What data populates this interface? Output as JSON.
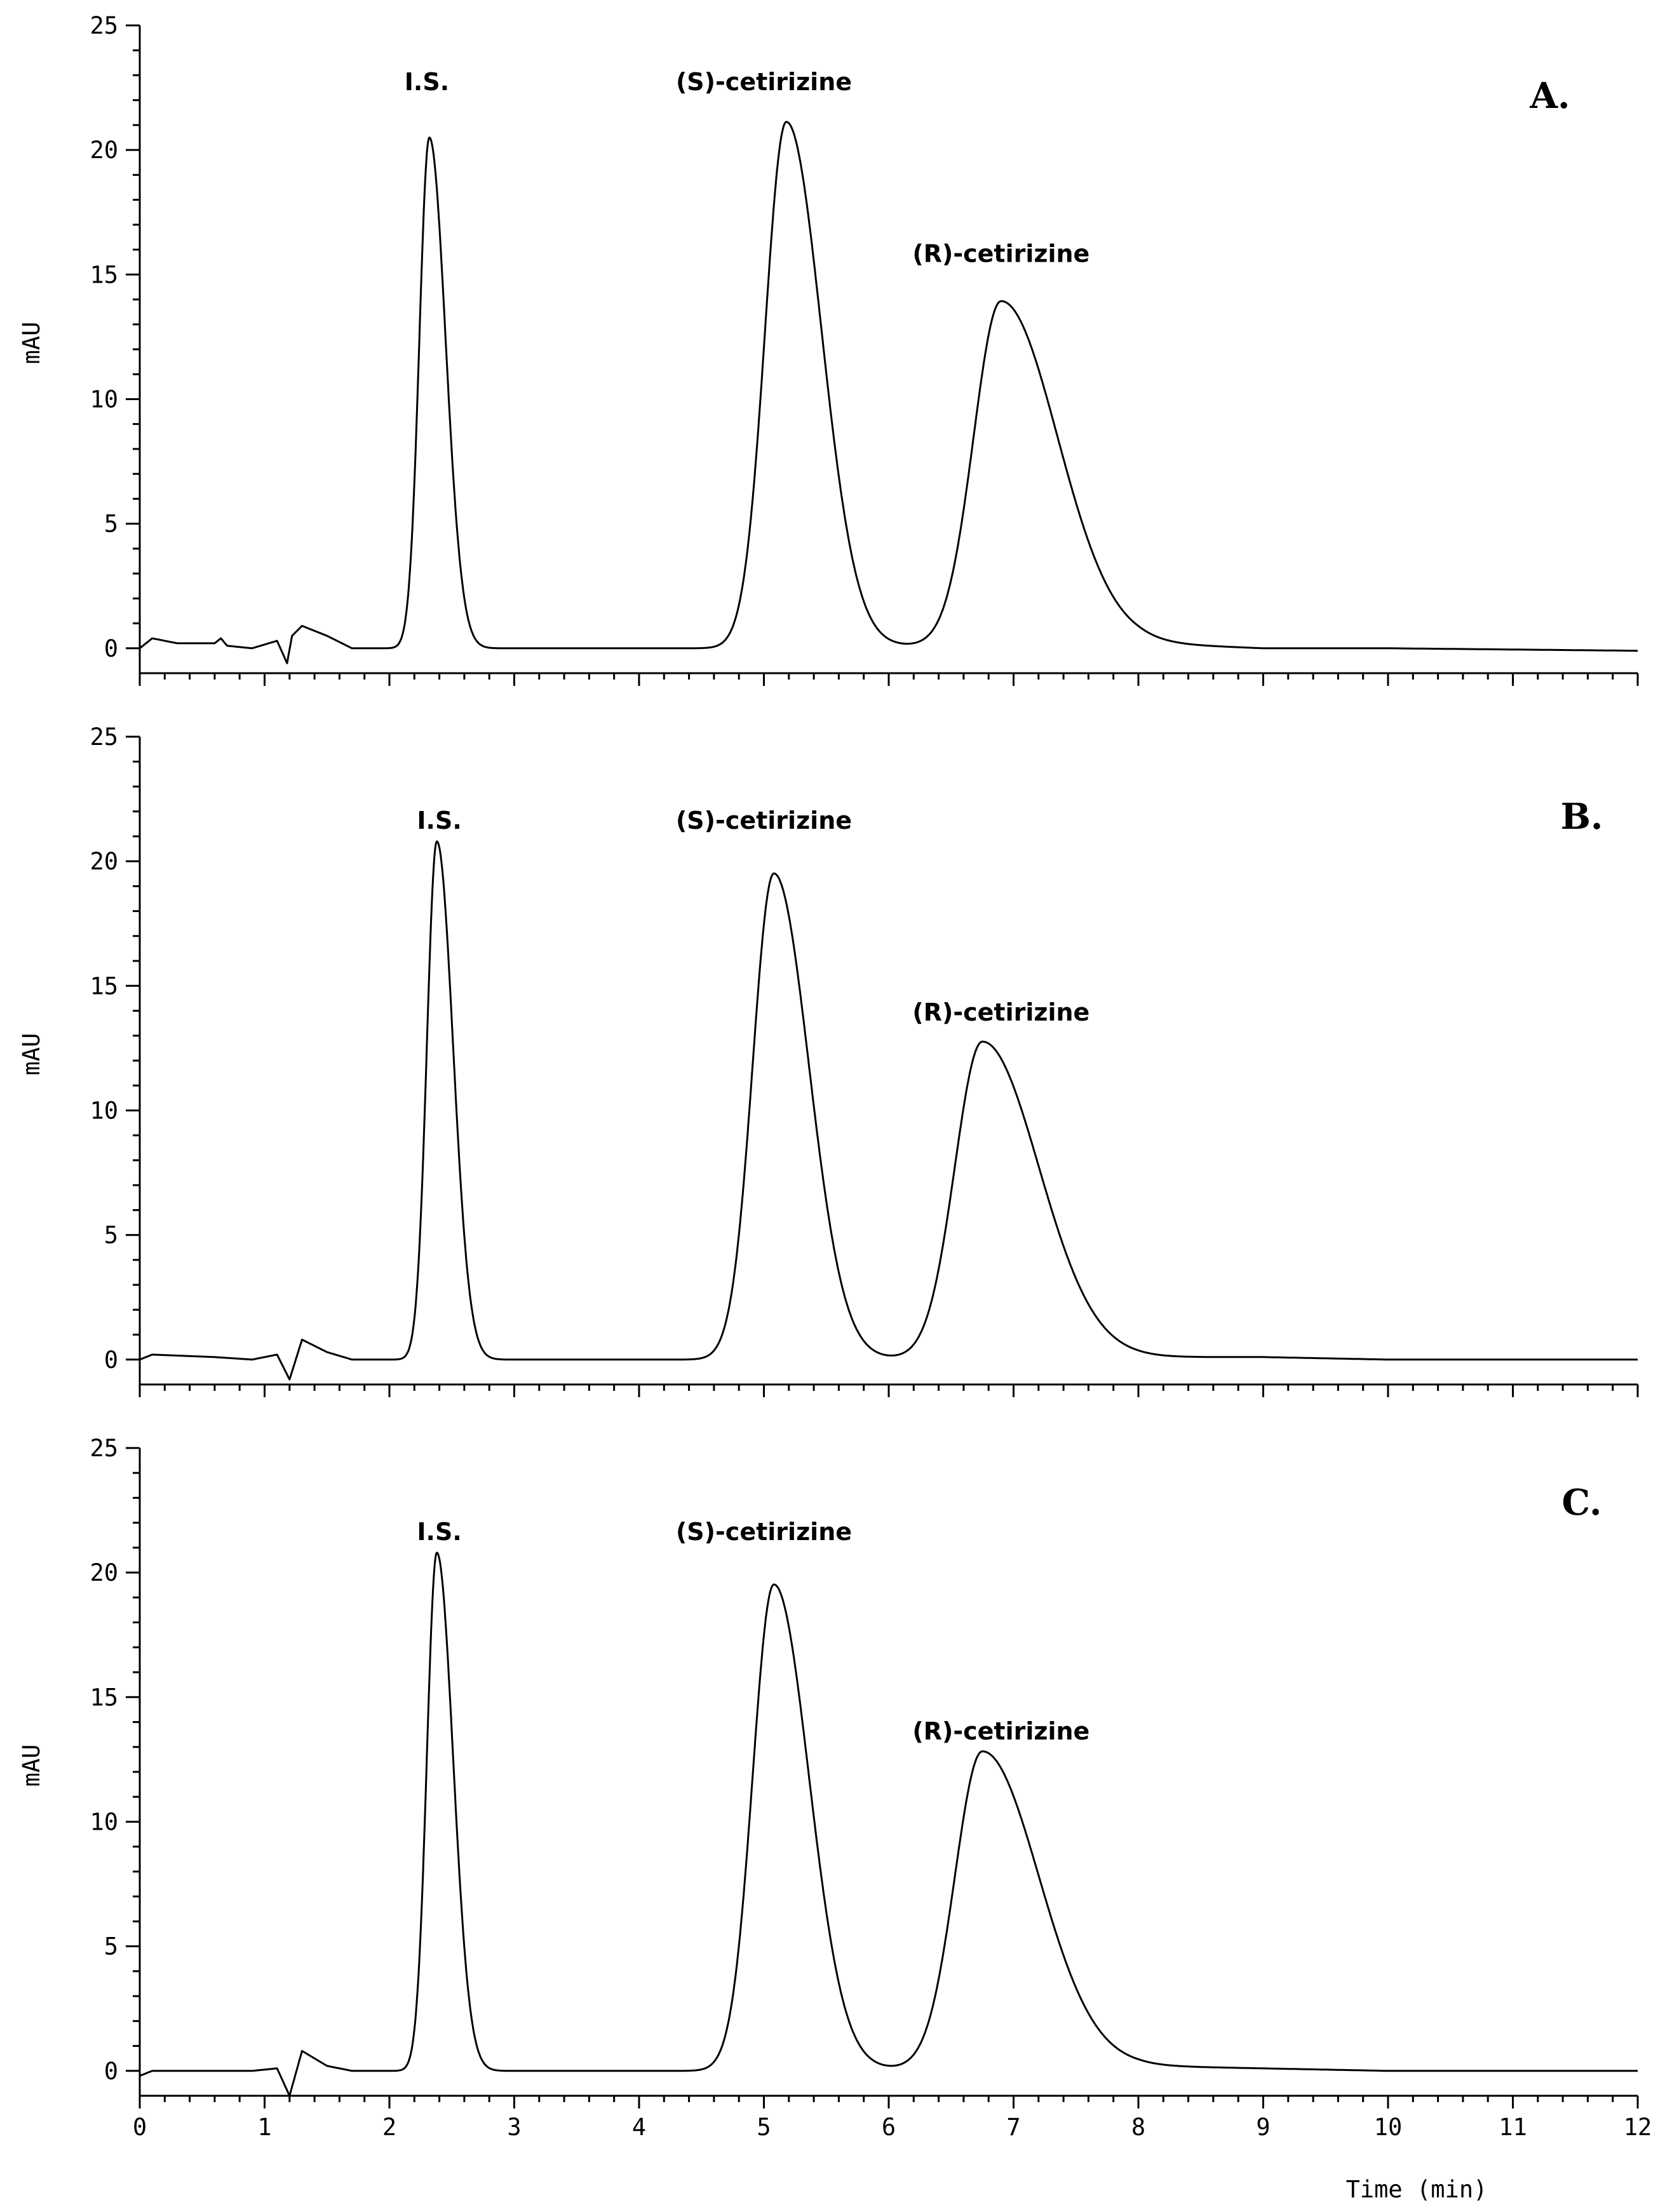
{
  "chart_data": [
    {
      "type": "line",
      "panel_label": "A.",
      "ylabel": "mAU",
      "xlabel": "Time (min)",
      "xlim": [
        0,
        12
      ],
      "ylim": [
        -1,
        25
      ],
      "xticks": [
        0,
        1,
        2,
        3,
        4,
        5,
        6,
        7,
        8,
        9,
        10,
        11,
        12
      ],
      "yticks": [
        0,
        5,
        10,
        15,
        20,
        25
      ],
      "show_x_tick_labels": false,
      "baseline": [
        [
          0.0,
          0.0
        ],
        [
          0.1,
          0.4
        ],
        [
          0.3,
          0.2
        ],
        [
          0.6,
          0.2
        ],
        [
          0.65,
          0.4
        ],
        [
          0.7,
          0.1
        ],
        [
          0.9,
          0.0
        ],
        [
          1.1,
          0.3
        ],
        [
          1.18,
          -0.6
        ],
        [
          1.22,
          0.5
        ],
        [
          1.3,
          0.9
        ],
        [
          1.5,
          0.5
        ],
        [
          1.7,
          0.0
        ],
        [
          2.1,
          0.0
        ],
        [
          3.5,
          0.0
        ],
        [
          4.7,
          0.0
        ],
        [
          8.0,
          0.2
        ],
        [
          9.0,
          0.0
        ],
        [
          10.0,
          0.0
        ],
        [
          12.0,
          -0.1
        ]
      ],
      "peaks": [
        {
          "label": "I.S.",
          "rt": 2.32,
          "height": 20.5,
          "w_left": 0.08,
          "w_right": 0.13
        },
        {
          "label": "(S)-cetirizine",
          "rt": 5.18,
          "height": 21.1,
          "w_left": 0.17,
          "w_right": 0.28
        },
        {
          "label": "(R)-cetirizine",
          "rt": 6.9,
          "height": 13.8,
          "w_left": 0.22,
          "w_right": 0.45
        }
      ],
      "annotations": [
        {
          "text": "I.S.",
          "x": 2.3,
          "y": 22.4
        },
        {
          "text": "(S)-cetirizine",
          "x": 5.0,
          "y": 22.4
        },
        {
          "text": "(R)-cetirizine",
          "x": 6.9,
          "y": 15.5
        }
      ]
    },
    {
      "type": "line",
      "panel_label": "B.",
      "ylabel": "mAU",
      "xlabel": "Time (min)",
      "xlim": [
        0,
        12
      ],
      "ylim": [
        -1,
        25
      ],
      "xticks": [
        0,
        1,
        2,
        3,
        4,
        5,
        6,
        7,
        8,
        9,
        10,
        11,
        12
      ],
      "yticks": [
        0,
        5,
        10,
        15,
        20,
        25
      ],
      "show_x_tick_labels": false,
      "baseline": [
        [
          0.0,
          0.0
        ],
        [
          0.1,
          0.2
        ],
        [
          0.6,
          0.1
        ],
        [
          0.9,
          0.0
        ],
        [
          1.1,
          0.2
        ],
        [
          1.2,
          -0.8
        ],
        [
          1.3,
          0.8
        ],
        [
          1.5,
          0.3
        ],
        [
          1.7,
          0.0
        ],
        [
          2.1,
          0.0
        ],
        [
          3.5,
          0.0
        ],
        [
          4.7,
          0.0
        ],
        [
          8.0,
          0.1
        ],
        [
          9.0,
          0.1
        ],
        [
          10.0,
          0.0
        ],
        [
          12.0,
          0.0
        ]
      ],
      "peaks": [
        {
          "label": "I.S.",
          "rt": 2.38,
          "height": 20.8,
          "w_left": 0.08,
          "w_right": 0.13
        },
        {
          "label": "(S)-cetirizine",
          "rt": 5.08,
          "height": 19.5,
          "w_left": 0.17,
          "w_right": 0.28
        },
        {
          "label": "(R)-cetirizine",
          "rt": 6.75,
          "height": 12.7,
          "w_left": 0.22,
          "w_right": 0.45
        }
      ],
      "annotations": [
        {
          "text": "I.S.",
          "x": 2.4,
          "y": 21.3
        },
        {
          "text": "(S)-cetirizine",
          "x": 5.0,
          "y": 21.3
        },
        {
          "text": "(R)-cetirizine",
          "x": 6.9,
          "y": 13.6
        }
      ]
    },
    {
      "type": "line",
      "panel_label": "C.",
      "ylabel": "mAU",
      "xlabel": "Time (min)",
      "xlim": [
        0,
        12
      ],
      "ylim": [
        -1,
        25
      ],
      "xticks": [
        0,
        1,
        2,
        3,
        4,
        5,
        6,
        7,
        8,
        9,
        10,
        11,
        12
      ],
      "yticks": [
        0,
        5,
        10,
        15,
        20,
        25
      ],
      "show_x_tick_labels": true,
      "baseline": [
        [
          0.0,
          -0.2
        ],
        [
          0.1,
          0.0
        ],
        [
          0.6,
          0.0
        ],
        [
          0.9,
          0.0
        ],
        [
          1.1,
          0.1
        ],
        [
          1.2,
          -1.0
        ],
        [
          1.3,
          0.8
        ],
        [
          1.5,
          0.2
        ],
        [
          1.7,
          0.0
        ],
        [
          2.1,
          0.0
        ],
        [
          3.5,
          0.0
        ],
        [
          4.7,
          0.0
        ],
        [
          8.0,
          0.2
        ],
        [
          9.0,
          0.1
        ],
        [
          10.0,
          0.0
        ],
        [
          12.0,
          0.0
        ]
      ],
      "peaks": [
        {
          "label": "I.S.",
          "rt": 2.38,
          "height": 20.8,
          "w_left": 0.08,
          "w_right": 0.13
        },
        {
          "label": "(S)-cetirizine",
          "rt": 5.08,
          "height": 19.5,
          "w_left": 0.17,
          "w_right": 0.28
        },
        {
          "label": "(R)-cetirizine",
          "rt": 6.75,
          "height": 12.7,
          "w_left": 0.22,
          "w_right": 0.45
        }
      ],
      "annotations": [
        {
          "text": "I.S.",
          "x": 2.4,
          "y": 21.3
        },
        {
          "text": "(S)-cetirizine",
          "x": 5.0,
          "y": 21.3
        },
        {
          "text": "(R)-cetirizine",
          "x": 6.9,
          "y": 13.3
        }
      ]
    }
  ]
}
